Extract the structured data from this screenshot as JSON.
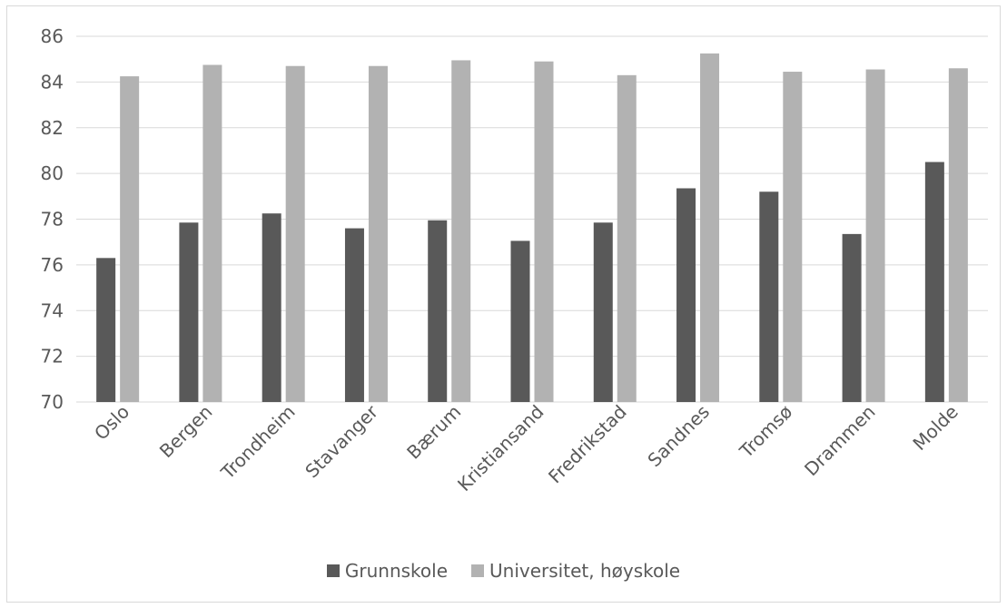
{
  "chart_data": {
    "type": "bar",
    "title": "",
    "xlabel": "",
    "ylabel": "",
    "categories": [
      "Oslo",
      "Bergen",
      "Trondheim",
      "Stavanger",
      "Bærum",
      "Kristiansand",
      "Fredrikstad",
      "Sandnes",
      "Tromsø",
      "Drammen",
      "Molde"
    ],
    "series": [
      {
        "name": "Grunnskole",
        "color": "#595959",
        "values": [
          76.3,
          77.85,
          78.25,
          77.6,
          77.95,
          77.05,
          77.85,
          79.35,
          79.2,
          77.35,
          80.5
        ]
      },
      {
        "name": "Universitet, høyskole",
        "color": "#b2b2b2",
        "values": [
          84.25,
          84.75,
          84.7,
          84.7,
          84.95,
          84.9,
          84.3,
          85.25,
          84.45,
          84.55,
          84.6
        ]
      }
    ],
    "ylim": [
      70,
      86
    ],
    "yticks": [
      "70",
      "72",
      "74",
      "76",
      "78",
      "80",
      "82",
      "84",
      "86"
    ],
    "grid": true,
    "legend_position": "bottom"
  }
}
